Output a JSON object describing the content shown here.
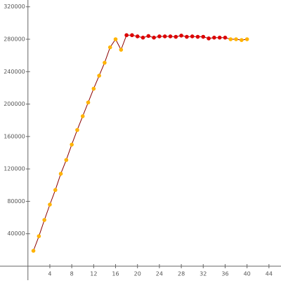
{
  "chart_data": {
    "type": "line",
    "x": [
      1,
      2,
      3,
      4,
      5,
      6,
      7,
      8,
      9,
      10,
      11,
      12,
      13,
      14,
      15,
      16,
      17,
      18,
      19,
      20,
      21,
      22,
      23,
      24,
      25,
      26,
      27,
      28,
      29,
      30,
      31,
      32,
      33,
      34,
      35,
      36,
      37,
      38,
      39,
      40
    ],
    "series": [
      {
        "color": "#8b0000",
        "values": [
          19000,
          37000,
          57000,
          76000,
          94000,
          114000,
          131000,
          150000,
          168000,
          185000,
          202000,
          219000,
          235000,
          251000,
          270000,
          280000,
          267000,
          285000,
          285000,
          283500,
          282000,
          284000,
          282000,
          283500,
          283500,
          283500,
          283000,
          284500,
          283000,
          283500,
          283000,
          283000,
          281000,
          282000,
          282000,
          282000,
          280000,
          280000,
          279000,
          280000
        ],
        "point_colors": [
          "#ffb300",
          "#ffb300",
          "#ffb300",
          "#ffb300",
          "#ffb300",
          "#ffb300",
          "#ffb300",
          "#ffb300",
          "#ffb300",
          "#ffb300",
          "#ffb300",
          "#ffb300",
          "#ffb300",
          "#ffb300",
          "#ffb300",
          "#ffb300",
          "#ffb300",
          "#dd0000",
          "#dd0000",
          "#dd0000",
          "#dd0000",
          "#dd0000",
          "#dd0000",
          "#dd0000",
          "#dd0000",
          "#dd0000",
          "#dd0000",
          "#dd0000",
          "#dd0000",
          "#dd0000",
          "#dd0000",
          "#dd0000",
          "#dd0000",
          "#dd0000",
          "#dd0000",
          "#dd0000",
          "#ffb300",
          "#ffb300",
          "#ffb300",
          "#ffb300"
        ]
      }
    ],
    "xlim": [
      -5.1,
      46.2
    ],
    "ylim": [
      -17300,
      328400
    ],
    "xticks": [
      4,
      8,
      12,
      16,
      20,
      24,
      28,
      32,
      36,
      40,
      44
    ],
    "yticks": [
      40000,
      80000,
      120000,
      160000,
      200000,
      240000,
      280000,
      320000
    ]
  }
}
